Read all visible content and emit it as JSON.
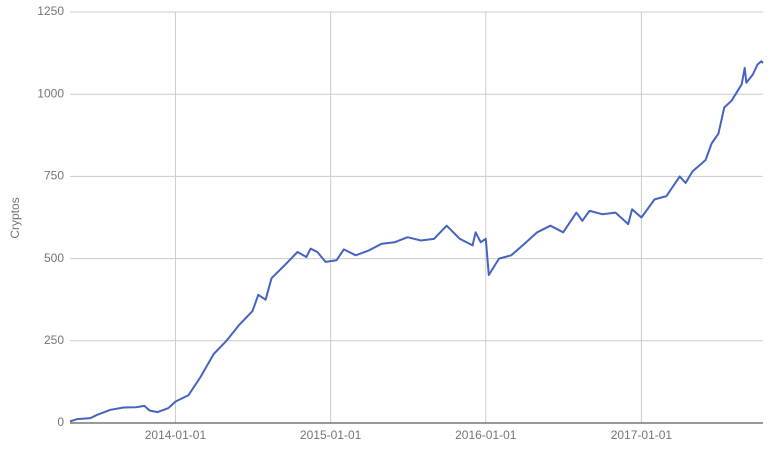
{
  "chart_data": {
    "type": "line",
    "y_label": "Cryptos",
    "x": [
      "2013-04-28",
      "2013-05-15",
      "2013-06-15",
      "2013-07-01",
      "2013-08-01",
      "2013-09-01",
      "2013-10-01",
      "2013-10-20",
      "2013-11-01",
      "2013-11-20",
      "2013-12-15",
      "2014-01-01",
      "2014-02-01",
      "2014-03-01",
      "2014-04-01",
      "2014-05-01",
      "2014-06-01",
      "2014-07-01",
      "2014-07-15",
      "2014-08-01",
      "2014-08-15",
      "2014-09-15",
      "2014-10-15",
      "2014-11-05",
      "2014-11-15",
      "2014-12-01",
      "2014-12-20",
      "2015-01-15",
      "2015-02-01",
      "2015-03-01",
      "2015-04-01",
      "2015-05-01",
      "2015-06-01",
      "2015-07-01",
      "2015-08-01",
      "2015-09-01",
      "2015-10-01",
      "2015-11-01",
      "2015-12-01",
      "2015-12-08",
      "2015-12-20",
      "2016-01-01",
      "2016-01-08",
      "2016-02-01",
      "2016-03-01",
      "2016-04-01",
      "2016-05-01",
      "2016-06-01",
      "2016-07-01",
      "2016-08-01",
      "2016-08-15",
      "2016-09-01",
      "2016-10-01",
      "2016-11-01",
      "2016-12-01",
      "2016-12-10",
      "2017-01-01",
      "2017-02-01",
      "2017-03-01",
      "2017-04-01",
      "2017-04-15",
      "2017-05-01",
      "2017-06-01",
      "2017-06-15",
      "2017-07-01",
      "2017-07-15",
      "2017-08-01",
      "2017-08-25",
      "2017-09-01",
      "2017-09-05",
      "2017-09-20",
      "2017-10-01",
      "2017-10-10",
      "2017-10-14"
    ],
    "series": [
      {
        "name": "Cryptos",
        "color": "#4563c0",
        "values": [
          5,
          12,
          15,
          25,
          40,
          47,
          48,
          52,
          38,
          33,
          45,
          65,
          85,
          140,
          210,
          250,
          300,
          340,
          390,
          375,
          440,
          480,
          520,
          505,
          530,
          520,
          490,
          495,
          528,
          510,
          525,
          545,
          550,
          565,
          555,
          560,
          600,
          560,
          540,
          580,
          550,
          560,
          450,
          500,
          510,
          545,
          580,
          600,
          580,
          640,
          615,
          645,
          635,
          640,
          605,
          650,
          625,
          680,
          690,
          750,
          730,
          765,
          800,
          850,
          880,
          960,
          980,
          1030,
          1080,
          1035,
          1060,
          1090,
          1100,
          1095
        ]
      }
    ],
    "xlim": [
      "2013-04-28",
      "2017-10-14"
    ],
    "xticks": [
      "2014-01-01",
      "2015-01-01",
      "2016-01-01",
      "2017-01-01"
    ],
    "ylim": [
      0,
      1250
    ],
    "yticks": [
      0,
      250,
      500,
      750,
      1000,
      1250
    ],
    "grid": true
  }
}
